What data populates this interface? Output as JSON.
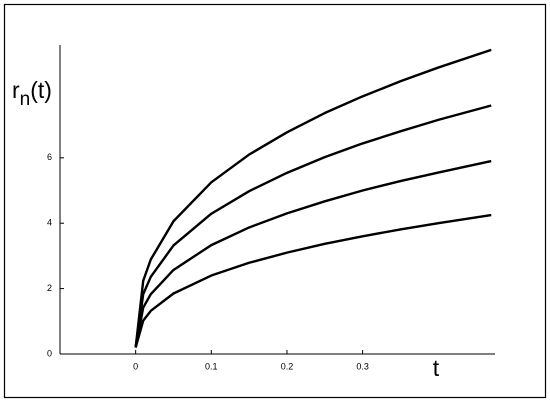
{
  "chart_data": {
    "type": "line",
    "ylabel": [
      "r",
      "n",
      "(t)"
    ],
    "xlabel": "t",
    "x": [
      0,
      0.01,
      0.02,
      0.05,
      0.1,
      0.15,
      0.2,
      0.25,
      0.3,
      0.35,
      0.4,
      0.47
    ],
    "series": [
      {
        "color": "#000000",
        "values": [
          0.2,
          2.24,
          2.89,
          4.06,
          5.25,
          6.1,
          6.78,
          7.37,
          7.88,
          8.34,
          8.76,
          9.3
        ]
      },
      {
        "color": "#000000",
        "values": [
          0.2,
          1.83,
          2.36,
          3.32,
          4.29,
          4.98,
          5.54,
          6.02,
          6.44,
          6.81,
          7.16,
          7.6
        ]
      },
      {
        "color": "#000000",
        "values": [
          0.2,
          1.42,
          1.83,
          2.57,
          3.33,
          3.87,
          4.3,
          4.67,
          5.0,
          5.29,
          5.55,
          5.9
        ]
      },
      {
        "color": "#000000",
        "values": [
          0.2,
          1.02,
          1.32,
          1.85,
          2.4,
          2.79,
          3.1,
          3.37,
          3.6,
          3.81,
          4.0,
          4.25
        ]
      }
    ],
    "xlim": [
      -0.1,
      0.475
    ],
    "ylim": [
      0,
      9.45
    ],
    "xticks": [
      0,
      0.1,
      0.2,
      0.3
    ],
    "yticks": [
      0,
      2,
      4,
      6
    ],
    "grid": false
  }
}
